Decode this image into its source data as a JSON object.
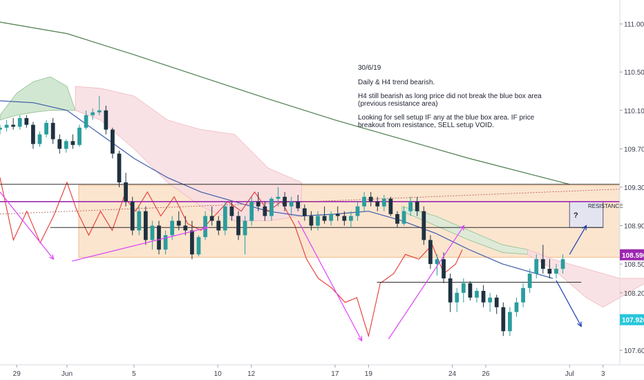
{
  "chart_data": {
    "type": "candlestick",
    "instrument_timeframe": "H4",
    "ylim": [
      107.45,
      111.25
    ],
    "x_range": [
      "May 28",
      "Jul 4"
    ],
    "grid": false,
    "y_ticks": [
      "111.000",
      "110.500",
      "110.100",
      "109.700",
      "109.300",
      "108.900",
      "108.500",
      "108.200",
      "107.600"
    ],
    "y_tick_values": [
      111.0,
      110.5,
      110.1,
      109.7,
      109.3,
      108.9,
      108.5,
      108.2,
      107.6
    ],
    "x_ticks": [
      "29",
      "Jun",
      "5",
      "10",
      "12",
      "17",
      "19",
      "24",
      "26",
      "Jul",
      "3"
    ],
    "x_tick_days": [
      29,
      32,
      36,
      41,
      43,
      48,
      50,
      55,
      57,
      62,
      64
    ],
    "price_tags": [
      {
        "label": "108.596",
        "value": 108.596,
        "color": "#9c27b0"
      },
      {
        "label": "107.920",
        "value": 107.92,
        "color": "#26c6da"
      }
    ],
    "zones": [
      {
        "name": "resistance-zone",
        "from": 108.57,
        "to": 109.32,
        "color": "#fbe5cf"
      },
      {
        "name": "blue-box",
        "label": "RESISTANCE",
        "from": 108.88,
        "to": 109.15,
        "color": "#e3e4f0",
        "mark": "?"
      }
    ],
    "horizontal_lines": [
      {
        "value": 109.33,
        "color": "#2b2b2b"
      },
      {
        "value": 109.15,
        "color": "#9c27b0"
      },
      {
        "value": 108.88,
        "color": "#2b2b2b"
      },
      {
        "value": 108.31,
        "color": "#2b2b2b"
      }
    ],
    "annotation": {
      "date": "30/6/19",
      "line1": "Daily & H4 trend bearish.",
      "line2a": "H4 still bearish as long price did not break the blue box area",
      "line2b": "(previous resistance area)",
      "line3a": "Looking for sell setup IF any at the blue box area. IF price",
      "line3b": "breakout from resistance, SELL setup VOID."
    },
    "series": [
      {
        "kind": "sma200",
        "color": "#4c7c4c",
        "points": [
          [
            28.0,
            111.02
          ],
          [
            32,
            110.9
          ],
          [
            36,
            110.68
          ],
          [
            40,
            110.45
          ],
          [
            44,
            110.22
          ],
          [
            48,
            110.0
          ],
          [
            52,
            109.8
          ],
          [
            56,
            109.6
          ],
          [
            60,
            109.42
          ],
          [
            62,
            109.33
          ]
        ]
      },
      {
        "kind": "sma50",
        "color": "#3d5ba9",
        "points": [
          [
            28.0,
            110.2
          ],
          [
            30,
            110.18
          ],
          [
            32,
            110.1
          ],
          [
            34,
            109.85
          ],
          [
            36,
            109.6
          ],
          [
            38,
            109.4
          ],
          [
            40,
            109.25
          ],
          [
            42,
            109.15
          ],
          [
            44,
            109.05
          ],
          [
            46,
            109.0
          ],
          [
            48,
            109.02
          ],
          [
            50,
            109.05
          ],
          [
            52,
            108.95
          ],
          [
            54,
            108.82
          ],
          [
            56,
            108.65
          ],
          [
            58,
            108.5
          ],
          [
            60,
            108.4
          ],
          [
            61,
            108.35
          ]
        ]
      },
      {
        "kind": "lagging-span",
        "color": "#e53935",
        "points": [
          [
            28.0,
            109.4
          ],
          [
            28.8,
            108.75
          ],
          [
            29.6,
            109.05
          ],
          [
            30.4,
            108.72
          ],
          [
            31.2,
            109.0
          ],
          [
            32.0,
            109.35
          ],
          [
            32.6,
            109.05
          ],
          [
            33.3,
            108.8
          ],
          [
            34.0,
            109.05
          ],
          [
            34.7,
            108.85
          ],
          [
            35.4,
            109.2
          ],
          [
            36.1,
            109.05
          ],
          [
            36.8,
            109.25
          ],
          [
            37.6,
            109.0
          ],
          [
            38.4,
            109.2
          ],
          [
            39.2,
            108.92
          ],
          [
            40.0,
            108.85
          ],
          [
            40.8,
            109.0
          ],
          [
            41.6,
            109.15
          ],
          [
            42.4,
            109.05
          ],
          [
            43.2,
            109.25
          ],
          [
            44.0,
            109.05
          ],
          [
            44.8,
            109.15
          ],
          [
            45.6,
            108.9
          ],
          [
            46.3,
            108.55
          ],
          [
            47.0,
            108.35
          ],
          [
            47.8,
            108.25
          ],
          [
            48.6,
            108.1
          ],
          [
            49.3,
            108.15
          ],
          [
            50.0,
            107.75
          ],
          [
            50.7,
            108.3
          ],
          [
            51.5,
            108.4
          ],
          [
            52.2,
            108.6
          ],
          [
            53.0,
            108.55
          ],
          [
            53.8,
            108.7
          ],
          [
            54.5,
            108.4
          ],
          [
            55.2,
            108.5
          ],
          [
            55.6,
            108.65
          ]
        ]
      },
      {
        "kind": "cloud-green",
        "color": "#c9e3c9",
        "upper": [
          [
            28.0,
            110.05
          ],
          [
            29,
            110.28
          ],
          [
            30,
            110.4
          ],
          [
            31,
            110.45
          ],
          [
            32,
            110.35
          ],
          [
            32.5,
            110.1
          ]
        ],
        "lower": [
          [
            28.0,
            110.0
          ],
          [
            29,
            110.05
          ],
          [
            30,
            110.08
          ],
          [
            31,
            110.1
          ],
          [
            32,
            110.1
          ],
          [
            32.5,
            110.1
          ]
        ]
      },
      {
        "kind": "cloud-pink",
        "color": "#f8dde1",
        "upper": [
          [
            32.5,
            110.35
          ],
          [
            34,
            110.33
          ],
          [
            36,
            110.25
          ],
          [
            38,
            110.0
          ],
          [
            40,
            109.9
          ],
          [
            42,
            109.85
          ],
          [
            44,
            109.5
          ],
          [
            46,
            109.35
          ]
        ],
        "lower": [
          [
            32.5,
            110.1
          ],
          [
            34,
            110.0
          ],
          [
            36,
            109.7
          ],
          [
            38,
            109.35
          ],
          [
            40,
            109.1
          ],
          [
            42,
            108.95
          ],
          [
            44,
            108.95
          ],
          [
            46,
            109.0
          ]
        ]
      },
      {
        "kind": "cloud-green",
        "color": "#d8ebd8",
        "upper": [
          [
            52,
            109.1
          ],
          [
            54,
            109.0
          ],
          [
            56,
            108.85
          ],
          [
            58,
            108.7
          ],
          [
            59.5,
            108.65
          ]
        ],
        "lower": [
          [
            52,
            109.05
          ],
          [
            54,
            108.9
          ],
          [
            56,
            108.75
          ],
          [
            58,
            108.62
          ],
          [
            59.5,
            108.6
          ]
        ]
      },
      {
        "kind": "cloud-pink",
        "color": "#f8dde1",
        "upper": [
          [
            59.5,
            108.65
          ],
          [
            61,
            108.55
          ],
          [
            63,
            108.45
          ],
          [
            65,
            108.35
          ],
          [
            66.5,
            108.35
          ]
        ],
        "lower": [
          [
            59.5,
            108.6
          ],
          [
            61,
            108.45
          ],
          [
            63,
            108.15
          ],
          [
            64,
            108.05
          ],
          [
            65,
            108.15
          ],
          [
            66.5,
            108.3
          ]
        ]
      }
    ],
    "candles": [
      [
        109.9,
        109.95,
        109.85,
        109.92
      ],
      [
        109.92,
        110.0,
        109.88,
        109.95
      ],
      [
        109.95,
        110.02,
        109.9,
        109.93
      ],
      [
        109.93,
        110.05,
        109.9,
        110.02
      ],
      [
        110.02,
        110.05,
        109.92,
        109.95
      ],
      [
        109.95,
        109.98,
        109.7,
        109.75
      ],
      [
        109.75,
        109.88,
        109.72,
        109.85
      ],
      [
        109.85,
        110.0,
        109.82,
        109.97
      ],
      [
        109.97,
        110.02,
        109.75,
        109.8
      ],
      [
        109.8,
        109.85,
        109.65,
        109.7
      ],
      [
        109.7,
        109.8,
        109.66,
        109.78
      ],
      [
        109.78,
        109.85,
        109.7,
        109.74
      ],
      [
        109.74,
        109.95,
        109.72,
        109.92
      ],
      [
        109.92,
        110.1,
        109.9,
        110.05
      ],
      [
        110.05,
        110.12,
        110.0,
        110.08
      ],
      [
        110.08,
        110.25,
        110.05,
        110.1
      ],
      [
        110.1,
        110.15,
        109.85,
        109.9
      ],
      [
        109.9,
        109.92,
        109.6,
        109.65
      ],
      [
        109.65,
        109.68,
        109.3,
        109.35
      ],
      [
        109.35,
        109.45,
        109.1,
        109.15
      ],
      [
        109.15,
        109.2,
        108.8,
        108.85
      ],
      [
        108.85,
        109.1,
        108.8,
        109.05
      ],
      [
        109.05,
        109.1,
        108.7,
        108.75
      ],
      [
        108.75,
        108.95,
        108.65,
        108.9
      ],
      [
        108.9,
        108.95,
        108.6,
        108.65
      ],
      [
        108.65,
        108.85,
        108.6,
        108.8
      ],
      [
        108.8,
        109.0,
        108.75,
        108.95
      ],
      [
        108.95,
        109.05,
        108.85,
        108.9
      ],
      [
        108.9,
        109.0,
        108.8,
        108.85
      ],
      [
        108.85,
        108.95,
        108.55,
        108.6
      ],
      [
        108.6,
        108.8,
        108.58,
        108.78
      ],
      [
        108.78,
        109.05,
        108.75,
        109.0
      ],
      [
        109.0,
        109.1,
        108.9,
        108.95
      ],
      [
        108.95,
        109.0,
        108.8,
        108.85
      ],
      [
        108.85,
        109.15,
        108.8,
        109.1
      ],
      [
        109.1,
        109.15,
        108.95,
        109.0
      ],
      [
        109.0,
        109.05,
        108.75,
        108.8
      ],
      [
        108.8,
        109.0,
        108.6,
        108.95
      ],
      [
        108.95,
        109.2,
        108.9,
        109.15
      ],
      [
        109.15,
        109.25,
        109.05,
        109.1
      ],
      [
        109.1,
        109.15,
        108.95,
        109.0
      ],
      [
        109.0,
        109.2,
        108.95,
        109.18
      ],
      [
        109.18,
        109.3,
        109.1,
        109.2
      ],
      [
        109.2,
        109.25,
        109.05,
        109.1
      ],
      [
        109.1,
        109.2,
        109.0,
        109.15
      ],
      [
        109.15,
        109.22,
        109.05,
        109.08
      ],
      [
        109.08,
        109.12,
        108.95,
        109.0
      ],
      [
        109.0,
        109.05,
        108.85,
        108.9
      ],
      [
        108.9,
        109.05,
        108.85,
        109.0
      ],
      [
        109.0,
        109.1,
        108.92,
        108.95
      ],
      [
        108.95,
        109.05,
        108.9,
        109.02
      ],
      [
        109.02,
        109.1,
        108.95,
        109.0
      ],
      [
        109.0,
        109.05,
        108.9,
        108.95
      ],
      [
        108.95,
        109.05,
        108.88,
        109.0
      ],
      [
        109.0,
        109.15,
        108.95,
        109.1
      ],
      [
        109.1,
        109.25,
        109.05,
        109.2
      ],
      [
        109.2,
        109.25,
        109.1,
        109.15
      ],
      [
        109.15,
        109.2,
        109.05,
        109.1
      ],
      [
        109.1,
        109.22,
        109.05,
        109.18
      ],
      [
        109.18,
        109.2,
        109.0,
        109.02
      ],
      [
        109.02,
        109.05,
        108.88,
        108.92
      ],
      [
        108.92,
        109.1,
        108.9,
        109.05
      ],
      [
        109.05,
        109.2,
        109.0,
        109.15
      ],
      [
        109.15,
        109.2,
        109.0,
        109.05
      ],
      [
        109.05,
        109.1,
        108.7,
        108.75
      ],
      [
        108.75,
        108.8,
        108.45,
        108.5
      ],
      [
        108.5,
        108.6,
        108.38,
        108.55
      ],
      [
        108.55,
        108.62,
        108.3,
        108.35
      ],
      [
        108.35,
        108.4,
        108.0,
        108.1
      ],
      [
        108.1,
        108.25,
        108.0,
        108.2
      ],
      [
        108.2,
        108.35,
        108.1,
        108.3
      ],
      [
        108.3,
        108.32,
        108.12,
        108.15
      ],
      [
        108.15,
        108.25,
        108.1,
        108.22
      ],
      [
        108.22,
        108.28,
        108.05,
        108.1
      ],
      [
        108.1,
        108.2,
        108.0,
        108.15
      ],
      [
        108.15,
        108.18,
        107.98,
        108.05
      ],
      [
        108.05,
        108.1,
        107.75,
        107.8
      ],
      [
        107.8,
        108.05,
        107.75,
        108.0
      ],
      [
        108.0,
        108.15,
        107.95,
        108.1
      ],
      [
        108.1,
        108.3,
        108.05,
        108.25
      ],
      [
        108.25,
        108.45,
        108.2,
        108.4
      ],
      [
        108.4,
        108.6,
        108.35,
        108.55
      ],
      [
        108.55,
        108.7,
        108.4,
        108.45
      ],
      [
        108.45,
        108.55,
        108.35,
        108.4
      ],
      [
        108.4,
        108.5,
        108.35,
        108.45
      ],
      [
        108.45,
        108.6,
        108.4,
        108.55
      ]
    ],
    "arrows": [
      {
        "color": "#e040fb",
        "from": [
          28.0,
          109.25
        ],
        "to": [
          31.2,
          108.55
        ]
      },
      {
        "color": "#e040fb",
        "from": [
          32.3,
          108.53
        ],
        "to": [
          40.4,
          108.88
        ]
      },
      {
        "color": "#e040fb",
        "from": [
          45.8,
          108.95
        ],
        "to": [
          49.6,
          107.7
        ]
      },
      {
        "color": "#e040fb",
        "from": [
          51.2,
          107.72
        ],
        "to": [
          55.7,
          108.9
        ]
      },
      {
        "color": "#1a3bb5",
        "from": [
          62.0,
          108.6
        ],
        "to": [
          63.0,
          108.9
        ]
      },
      {
        "color": "#1a3bb5",
        "from": [
          61.2,
          108.33
        ],
        "to": [
          62.7,
          107.85
        ]
      }
    ]
  }
}
